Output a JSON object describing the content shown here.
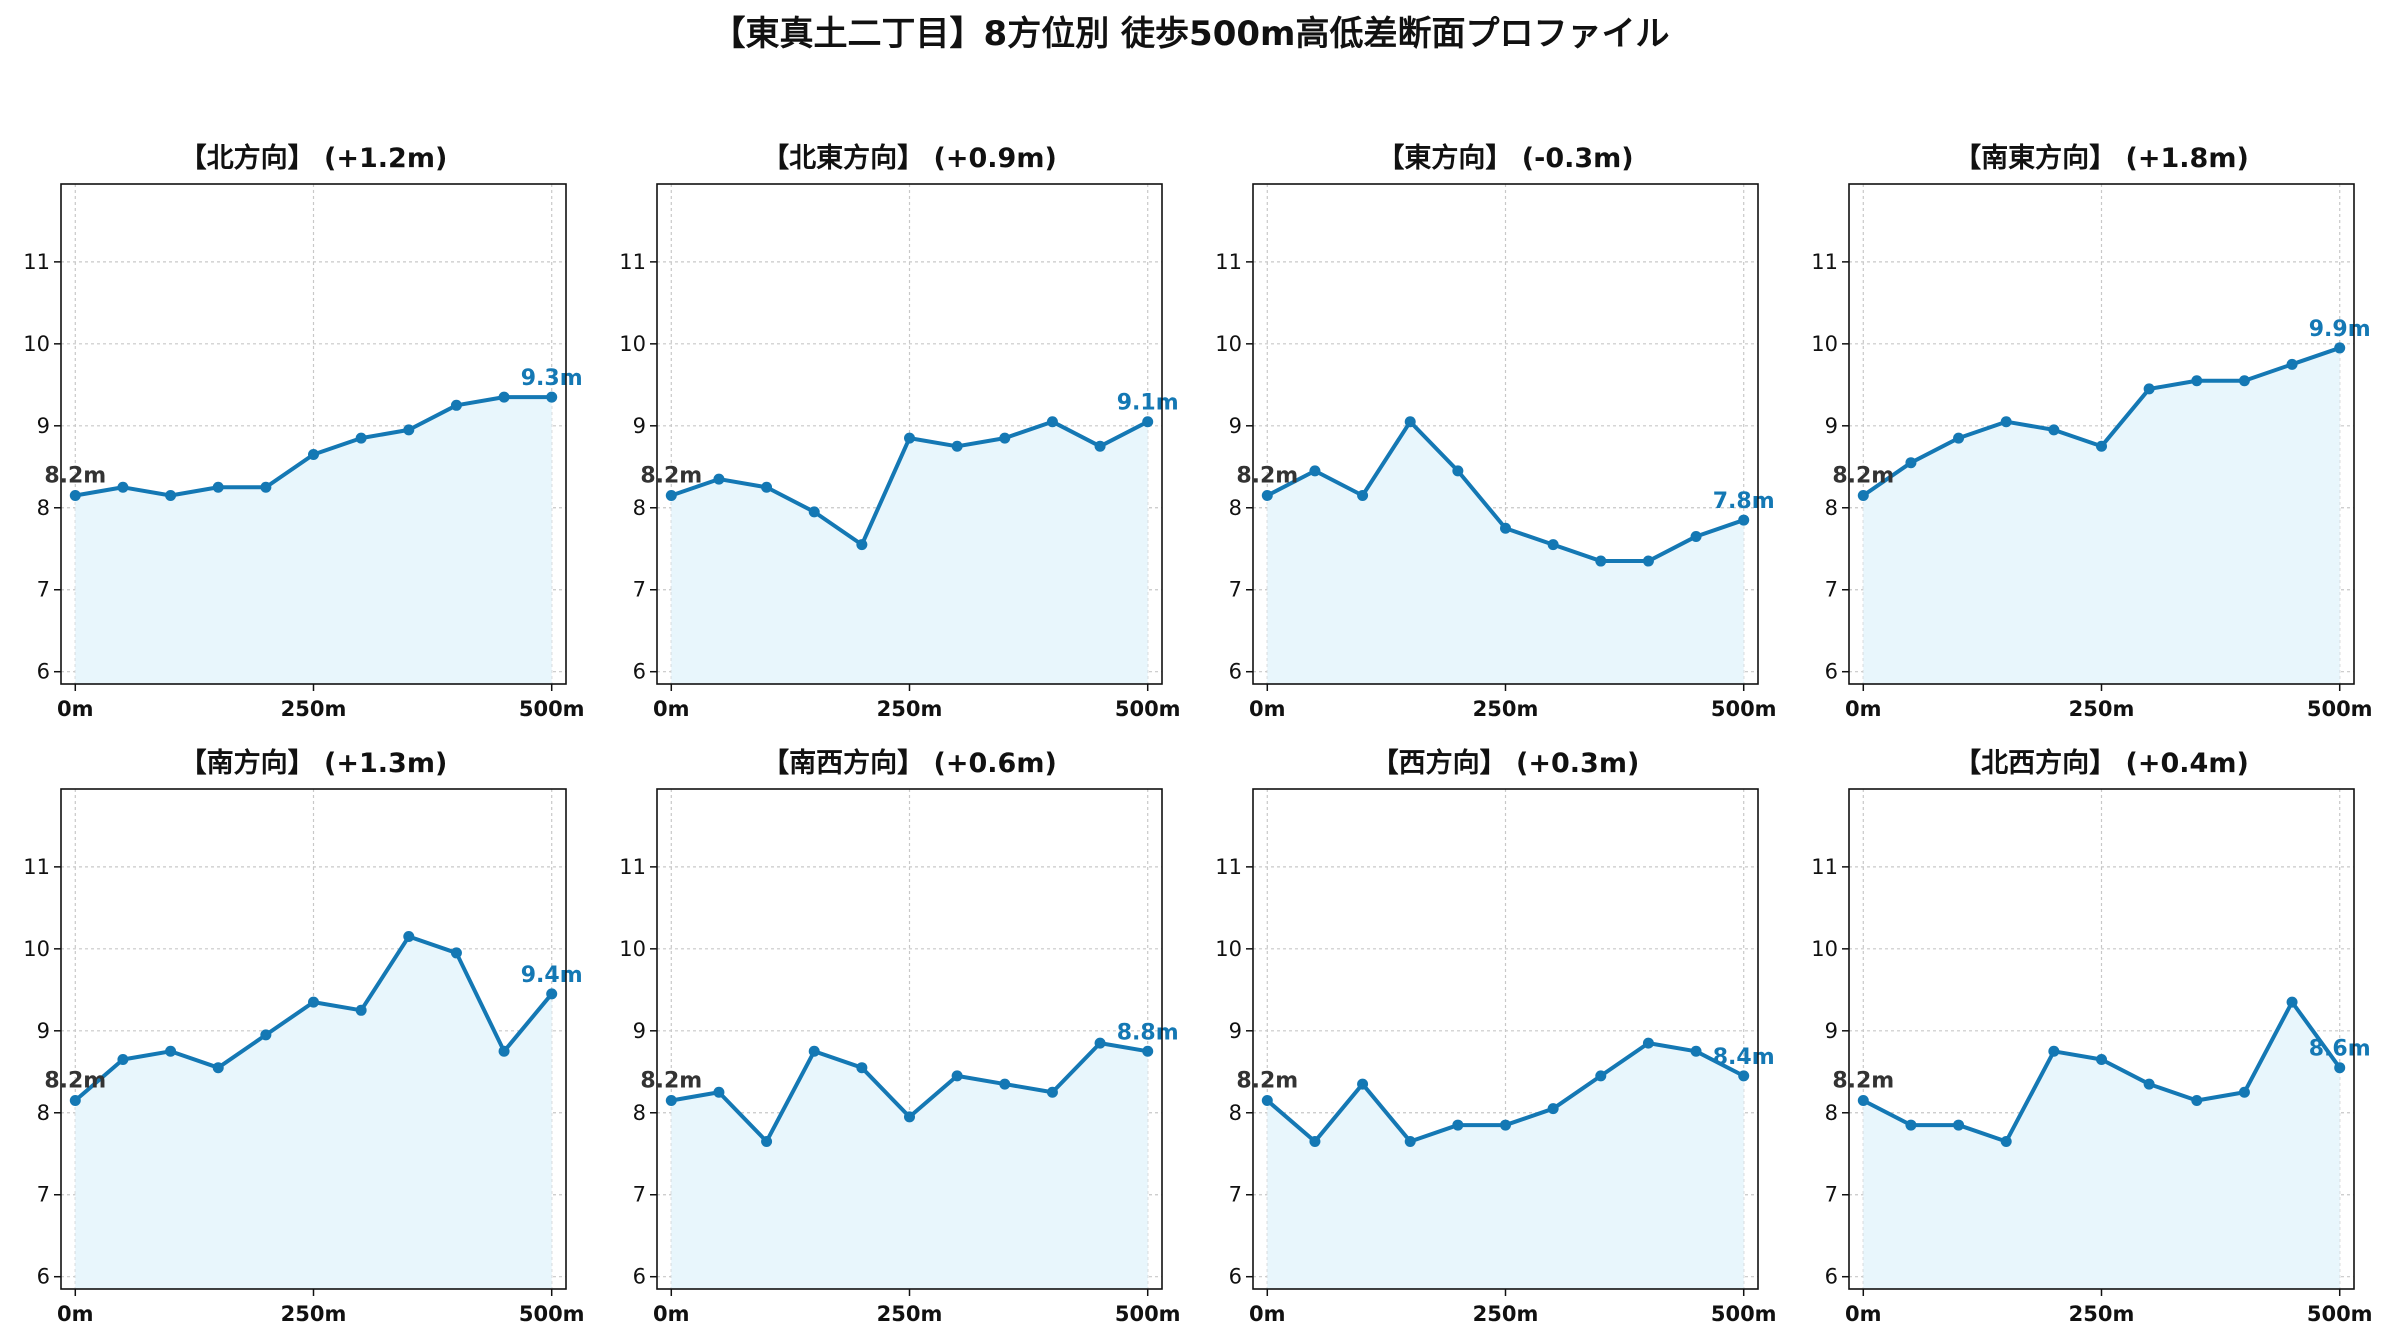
{
  "title": "【東真土二丁目】8方位別 徒歩500m高低差断面プロファイル",
  "colors": {
    "line": "#1478b4",
    "fill": "#e8f6fc",
    "grid": "#c8c8c8",
    "start_label": "#333333"
  },
  "chart_data": [
    {
      "type": "area",
      "title": "【北方向】 (+1.2m)",
      "x": [
        0,
        50,
        100,
        150,
        200,
        250,
        300,
        350,
        400,
        450,
        500
      ],
      "values": [
        8.15,
        8.25,
        8.15,
        8.25,
        8.25,
        8.65,
        8.85,
        8.95,
        9.25,
        9.35,
        9.35
      ],
      "xticks": [
        "0m",
        "250m",
        "500m"
      ],
      "yticks": [
        "6",
        "7",
        "8",
        "9",
        "10",
        "11"
      ],
      "ylim": [
        5.85,
        11.95
      ],
      "xlim": [
        -15,
        515
      ],
      "start_label": "8.2m",
      "end_label": "9.3m",
      "grid": true
    },
    {
      "type": "area",
      "title": "【北東方向】 (+0.9m)",
      "x": [
        0,
        50,
        100,
        150,
        200,
        250,
        300,
        350,
        400,
        450,
        500
      ],
      "values": [
        8.15,
        8.35,
        8.25,
        7.95,
        7.55,
        8.85,
        8.75,
        8.85,
        9.05,
        8.75,
        9.05
      ],
      "xticks": [
        "0m",
        "250m",
        "500m"
      ],
      "yticks": [
        "6",
        "7",
        "8",
        "9",
        "10",
        "11"
      ],
      "ylim": [
        5.85,
        11.95
      ],
      "xlim": [
        -15,
        515
      ],
      "start_label": "8.2m",
      "end_label": "9.1m",
      "grid": true
    },
    {
      "type": "area",
      "title": "【東方向】 (-0.3m)",
      "x": [
        0,
        50,
        100,
        150,
        200,
        250,
        300,
        350,
        400,
        450,
        500
      ],
      "values": [
        8.15,
        8.45,
        8.15,
        9.05,
        8.45,
        7.75,
        7.55,
        7.35,
        7.35,
        7.65,
        7.85
      ],
      "xticks": [
        "0m",
        "250m",
        "500m"
      ],
      "yticks": [
        "6",
        "7",
        "8",
        "9",
        "10",
        "11"
      ],
      "ylim": [
        5.85,
        11.95
      ],
      "xlim": [
        -15,
        515
      ],
      "start_label": "8.2m",
      "end_label": "7.8m",
      "grid": true
    },
    {
      "type": "area",
      "title": "【南東方向】 (+1.8m)",
      "x": [
        0,
        50,
        100,
        150,
        200,
        250,
        300,
        350,
        400,
        450,
        500
      ],
      "values": [
        8.15,
        8.55,
        8.85,
        9.05,
        8.95,
        8.75,
        9.45,
        9.55,
        9.55,
        9.75,
        9.95
      ],
      "xticks": [
        "0m",
        "250m",
        "500m"
      ],
      "yticks": [
        "6",
        "7",
        "8",
        "9",
        "10",
        "11"
      ],
      "ylim": [
        5.85,
        11.95
      ],
      "xlim": [
        -15,
        515
      ],
      "start_label": "8.2m",
      "end_label": "9.9m",
      "grid": true
    },
    {
      "type": "area",
      "title": "【南方向】 (+1.3m)",
      "x": [
        0,
        50,
        100,
        150,
        200,
        250,
        300,
        350,
        400,
        450,
        500
      ],
      "values": [
        8.15,
        8.65,
        8.75,
        8.55,
        8.95,
        9.35,
        9.25,
        10.15,
        9.95,
        8.75,
        9.45
      ],
      "xticks": [
        "0m",
        "250m",
        "500m"
      ],
      "yticks": [
        "6",
        "7",
        "8",
        "9",
        "10",
        "11"
      ],
      "ylim": [
        5.85,
        11.95
      ],
      "xlim": [
        -15,
        515
      ],
      "start_label": "8.2m",
      "end_label": "9.4m",
      "grid": true
    },
    {
      "type": "area",
      "title": "【南西方向】 (+0.6m)",
      "x": [
        0,
        50,
        100,
        150,
        200,
        250,
        300,
        350,
        400,
        450,
        500
      ],
      "values": [
        8.15,
        8.25,
        7.65,
        8.75,
        8.55,
        7.95,
        8.45,
        8.35,
        8.25,
        8.85,
        8.75
      ],
      "xticks": [
        "0m",
        "250m",
        "500m"
      ],
      "yticks": [
        "6",
        "7",
        "8",
        "9",
        "10",
        "11"
      ],
      "ylim": [
        5.85,
        11.95
      ],
      "xlim": [
        -15,
        515
      ],
      "start_label": "8.2m",
      "end_label": "8.8m",
      "grid": true
    },
    {
      "type": "area",
      "title": "【西方向】 (+0.3m)",
      "x": [
        0,
        50,
        100,
        150,
        200,
        250,
        300,
        350,
        400,
        450,
        500
      ],
      "values": [
        8.15,
        7.65,
        8.35,
        7.65,
        7.85,
        7.85,
        8.05,
        8.45,
        8.85,
        8.75,
        8.45
      ],
      "xticks": [
        "0m",
        "250m",
        "500m"
      ],
      "yticks": [
        "6",
        "7",
        "8",
        "9",
        "10",
        "11"
      ],
      "ylim": [
        5.85,
        11.95
      ],
      "xlim": [
        -15,
        515
      ],
      "start_label": "8.2m",
      "end_label": "8.4m",
      "grid": true
    },
    {
      "type": "area",
      "title": "【北西方向】 (+0.4m)",
      "x": [
        0,
        50,
        100,
        150,
        200,
        250,
        300,
        350,
        400,
        450,
        500
      ],
      "values": [
        8.15,
        7.85,
        7.85,
        7.65,
        8.75,
        8.65,
        8.35,
        8.15,
        8.25,
        9.35,
        8.55
      ],
      "xticks": [
        "0m",
        "250m",
        "500m"
      ],
      "yticks": [
        "6",
        "7",
        "8",
        "9",
        "10",
        "11"
      ],
      "ylim": [
        5.85,
        11.95
      ],
      "xlim": [
        -15,
        515
      ],
      "start_label": "8.2m",
      "end_label": "8.6m",
      "grid": true
    }
  ]
}
